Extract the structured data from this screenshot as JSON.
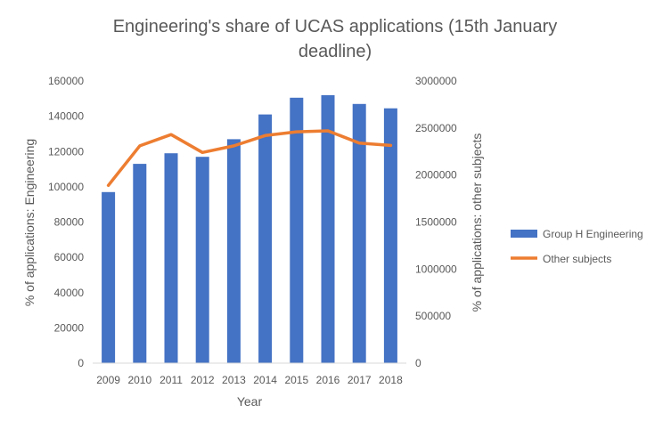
{
  "chart_data": {
    "type": "bar",
    "title_lines": [
      "Engineering's  share of UCAS applications (15th January",
      "deadline)"
    ],
    "xlabel": "Year",
    "ylabel_left": "% of applications: Engineering",
    "ylabel_right": "% of applications: other subjects",
    "categories": [
      "2009",
      "2010",
      "2011",
      "2012",
      "2013",
      "2014",
      "2015",
      "2016",
      "2017",
      "2018"
    ],
    "series": [
      {
        "name": "Group H Engineering",
        "type": "bar",
        "axis": "left",
        "color": "#4472C4",
        "values": [
          97000,
          113000,
          119000,
          117000,
          127000,
          141000,
          150500,
          152000,
          147000,
          144500
        ]
      },
      {
        "name": "Other subjects",
        "type": "line",
        "axis": "right",
        "color": "#ED7D31",
        "values": [
          1890000,
          2310000,
          2430000,
          2240000,
          2310000,
          2420000,
          2460000,
          2470000,
          2340000,
          2315000
        ]
      }
    ],
    "ylim_left": [
      0,
      160000
    ],
    "yticks_left": [
      "0",
      "20000",
      "40000",
      "60000",
      "80000",
      "100000",
      "120000",
      "140000",
      "160000"
    ],
    "ylim_right": [
      0,
      3000000
    ],
    "yticks_right": [
      "0",
      "500000",
      "1000000",
      "1500000",
      "2000000",
      "2500000",
      "3000000"
    ],
    "grid": false,
    "legend_position": "right"
  }
}
